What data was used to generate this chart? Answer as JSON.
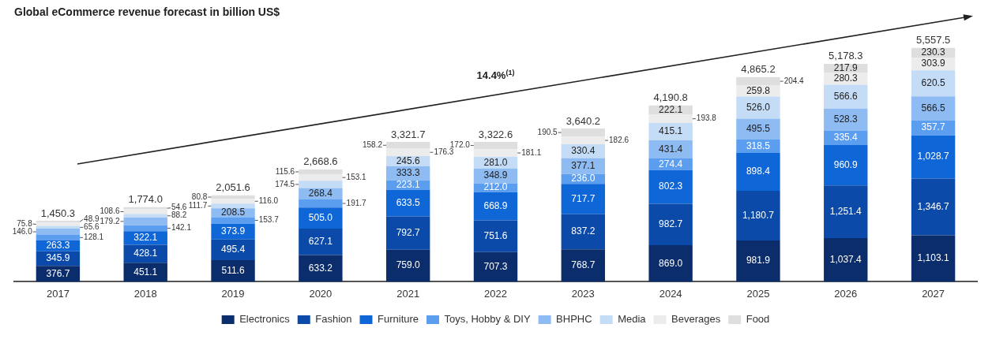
{
  "chart_data": {
    "type": "bar",
    "title": "Global eCommerce revenue forecast in billion US$",
    "stacked": true,
    "legend": "bottom",
    "grid": false,
    "categories": [
      "2017",
      "2018",
      "2019",
      "2020",
      "2021",
      "2022",
      "2023",
      "2024",
      "2025",
      "2026",
      "2027"
    ],
    "series": [
      {
        "name": "Electronics",
        "color": "#0b2d6b",
        "values": [
          376.7,
          451.1,
          511.6,
          633.2,
          759.0,
          707.3,
          768.7,
          869.0,
          981.9,
          1037.4,
          1103.1
        ],
        "value_labels": [
          "376.7",
          "451.1",
          "511.6",
          "633.2",
          "759.0",
          "707.3",
          "768.7",
          "869.0",
          "981.9",
          "1,037.4",
          "1,103.1"
        ]
      },
      {
        "name": "Fashion",
        "color": "#0b4aa8",
        "values": [
          345.9,
          428.1,
          495.4,
          627.1,
          792.7,
          751.6,
          837.2,
          982.7,
          1180.7,
          1251.4,
          1346.7
        ],
        "value_labels": [
          "345.9",
          "428.1",
          "495.4",
          "627.1",
          "792.7",
          "751.6",
          "837.2",
          "982.7",
          "1,180.7",
          "1,251.4",
          "1,346.7"
        ]
      },
      {
        "name": "Furniture",
        "color": "#0f66d6",
        "values": [
          263.3,
          322.1,
          373.9,
          505.0,
          633.5,
          668.9,
          717.7,
          802.3,
          898.4,
          960.9,
          1028.7
        ],
        "value_labels": [
          "263.3",
          "322.1",
          "373.9",
          "505.0",
          "633.5",
          "668.9",
          "717.7",
          "802.3",
          "898.4",
          "960.9",
          "1,028.7"
        ]
      },
      {
        "name": "Toys, Hobby & DIY",
        "color": "#5b9ef0",
        "values": [
          128.1,
          142.1,
          153.7,
          191.7,
          223.1,
          212.0,
          236.0,
          274.4,
          318.5,
          335.4,
          357.7
        ],
        "value_labels": [
          "128.1",
          "142.1",
          "153.7",
          "191.7",
          "223.1",
          "212.0",
          "236.0",
          "274.4",
          "318.5",
          "335.4",
          "357.7"
        ]
      },
      {
        "name": "BHPHC",
        "color": "#8dbbf2",
        "values": [
          146.0,
          179.2,
          208.5,
          268.4,
          333.3,
          348.9,
          377.1,
          431.4,
          495.5,
          528.3,
          566.5
        ],
        "value_labels": [
          "146.0",
          "179.2",
          "208.5",
          "268.4",
          "333.3",
          "348.9",
          "377.1",
          "431.4",
          "495.5",
          "528.3",
          "566.5"
        ]
      },
      {
        "name": "Media",
        "color": "#c5dcf7",
        "values": [
          65.6,
          88.2,
          111.7,
          174.5,
          245.6,
          281.0,
          330.4,
          415.1,
          526.0,
          566.6,
          620.5
        ],
        "value_labels": [
          "65.6",
          "88.2",
          "111.7",
          "174.5",
          "245.6",
          "281.0",
          "330.4",
          "415.1",
          "526.0",
          "566.6",
          "620.5"
        ]
      },
      {
        "name": "Beverages",
        "color": "#ececec",
        "values": [
          75.8,
          108.6,
          116.0,
          153.1,
          176.3,
          181.1,
          182.6,
          193.8,
          259.8,
          280.3,
          303.9
        ],
        "value_labels": [
          "75.8",
          "108.6",
          "116.0",
          "153.1",
          "176.3",
          "181.1",
          "182.6",
          "193.8",
          "259.8",
          "280.3",
          "303.9"
        ]
      },
      {
        "name": "Food",
        "color": "#dedede",
        "values": [
          48.9,
          54.6,
          80.8,
          115.6,
          158.2,
          172.0,
          190.5,
          222.1,
          204.4,
          217.9,
          230.3
        ],
        "value_labels": [
          "48.9",
          "54.6",
          "80.8",
          "115.6",
          "158.2",
          "172.0",
          "190.5",
          "222.1",
          "204.4",
          "217.9",
          "230.3"
        ]
      }
    ],
    "totals": [
      "1,450.3",
      "1,774.0",
      "2,051.6",
      "2,668.6",
      "3,321.7",
      "3,322.6",
      "3,640.2",
      "4,190.8",
      "4,865.2",
      "5,178.3",
      "5,557.5"
    ],
    "annotations": [
      "14.4%$^{(1)}$"
    ]
  }
}
